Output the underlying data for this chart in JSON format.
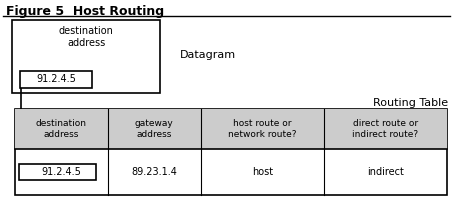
{
  "title": "Figure 5  Host Routing",
  "title_fontsize": 9,
  "white": "#ffffff",
  "black": "#000000",
  "light_gray": "#cccccc",
  "datagram_label": "Datagram",
  "routing_table_label": "Routing Table",
  "dest_addr_label": "destination\naddress",
  "ip_label": "91.2.4.5",
  "col_headers": [
    "destination\naddress",
    "gateway\naddress",
    "host route or\nnetwork route?",
    "direct route or\nindirect route?"
  ],
  "row_data": [
    "91.2.4.5",
    "89.23.1.4",
    "host",
    "indirect"
  ],
  "font_size": 7,
  "small_font": 6.5
}
